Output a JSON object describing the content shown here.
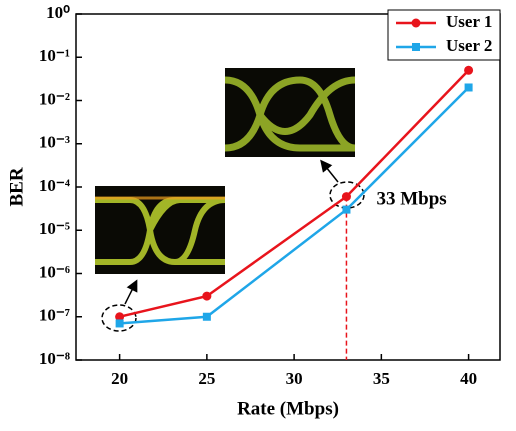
{
  "chart_data": {
    "type": "line",
    "x_label": "Rate (Mbps)",
    "y_label": "BER",
    "x": [
      20,
      25,
      33,
      40
    ],
    "series": [
      {
        "name": "User 1",
        "color": "#e8141c",
        "marker": "circle",
        "values": [
          1e-07,
          3e-07,
          6e-05,
          0.05
        ]
      },
      {
        "name": "User 2",
        "color": "#1fa6e8",
        "marker": "square",
        "values": [
          7e-08,
          1e-07,
          3e-05,
          0.02
        ]
      }
    ],
    "xlim": [
      17.5,
      41.8
    ],
    "xticks": [
      20,
      25,
      30,
      35,
      40
    ],
    "ylim": [
      1e-08,
      1
    ],
    "yscale": "log",
    "yticks": [
      {
        "value": 1e-08,
        "label": "10⁻⁸"
      },
      {
        "value": 1e-07,
        "label": "10⁻⁷"
      },
      {
        "value": 1e-06,
        "label": "10⁻⁶"
      },
      {
        "value": 1e-05,
        "label": "10⁻⁵"
      },
      {
        "value": 0.0001,
        "label": "10⁻⁴"
      },
      {
        "value": 0.001,
        "label": "10⁻³"
      },
      {
        "value": 0.01,
        "label": "10⁻²"
      },
      {
        "value": 0.1,
        "label": "10⁻¹"
      },
      {
        "value": 1,
        "label": "10⁰"
      }
    ],
    "annotation": {
      "text": "33 Mbps",
      "x": 33,
      "color": "#e8141c"
    },
    "legend": "upper right"
  }
}
